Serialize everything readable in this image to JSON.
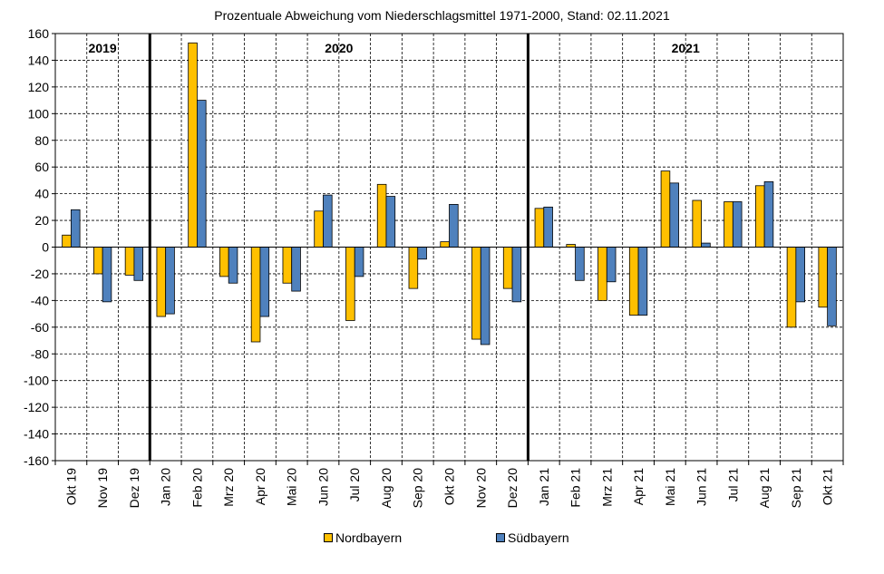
{
  "chart_data": {
    "type": "bar",
    "title": "Prozentuale Abweichung vom Niederschlagsmittel 1971-2000, Stand: 02.11.2021",
    "xlabel": "",
    "ylabel": "",
    "ylim": [
      -160,
      160
    ],
    "yticks": [
      160,
      140,
      120,
      100,
      80,
      60,
      40,
      20,
      0,
      -20,
      -40,
      -60,
      -80,
      -100,
      -120,
      -140,
      -160
    ],
    "grid": true,
    "legend_position": "bottom",
    "categories": [
      "Okt 19",
      "Nov 19",
      "Dez 19",
      "Jan 20",
      "Feb 20",
      "Mrz 20",
      "Apr 20",
      "Mai 20",
      "Jun 20",
      "Jul 20",
      "Aug 20",
      "Sep 20",
      "Okt 20",
      "Nov 20",
      "Dez 20",
      "Jan 21",
      "Feb 21",
      "Mrz 21",
      "Apr 21",
      "Mai 21",
      "Jun 21",
      "Jul 21",
      "Aug 21",
      "Sep 21",
      "Okt 21"
    ],
    "series": [
      {
        "name": "Nordbayern",
        "color": "#FFC000",
        "values": [
          9,
          -20,
          -21,
          -52,
          153,
          -22,
          -71,
          -27,
          27,
          -55,
          47,
          -31,
          4,
          -69,
          -31,
          29,
          2,
          -40,
          -51,
          57,
          35,
          34,
          46,
          -60,
          -45
        ]
      },
      {
        "name": "Südbayern",
        "color": "#4F81BD",
        "values": [
          28,
          -41,
          -25,
          -50,
          110,
          -27,
          -52,
          -33,
          39,
          -22,
          38,
          -9,
          32,
          -73,
          -41,
          30,
          -25,
          -26,
          -51,
          48,
          3,
          34,
          49,
          -41,
          -59
        ]
      }
    ],
    "year_sections": [
      {
        "label": "2019",
        "start_index": 0,
        "end_index": 2
      },
      {
        "label": "2020",
        "start_index": 3,
        "end_index": 14
      },
      {
        "label": "2021",
        "start_index": 15,
        "end_index": 24
      }
    ]
  }
}
